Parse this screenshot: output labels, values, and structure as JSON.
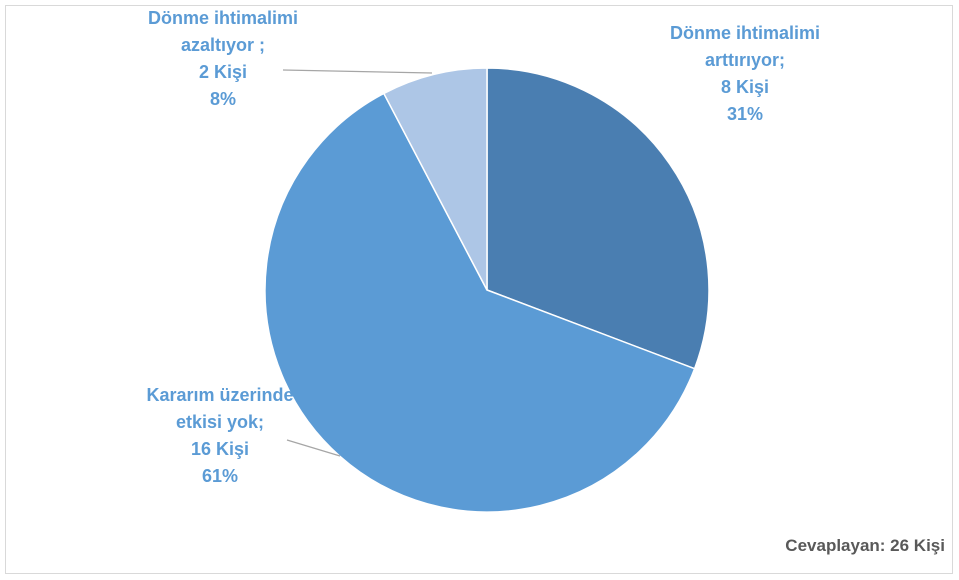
{
  "chart_data": {
    "type": "pie",
    "categories": [
      "Dönme ihtimalimi arttırıyor;",
      "Kararım üzerinde etkisi yok;",
      "Dönme ihtimalimi azaltıyor ;"
    ],
    "values": [
      8,
      16,
      2
    ],
    "value_labels": [
      "8 Kişi",
      "16 Kişi",
      "2 Kişi"
    ],
    "percent_labels": [
      "31%",
      "61%",
      "8%"
    ],
    "colors": [
      "#4a7eb1",
      "#5b9bd5",
      "#adc6e6"
    ],
    "annotation": "Cevaplayan: 26 Kişi"
  }
}
